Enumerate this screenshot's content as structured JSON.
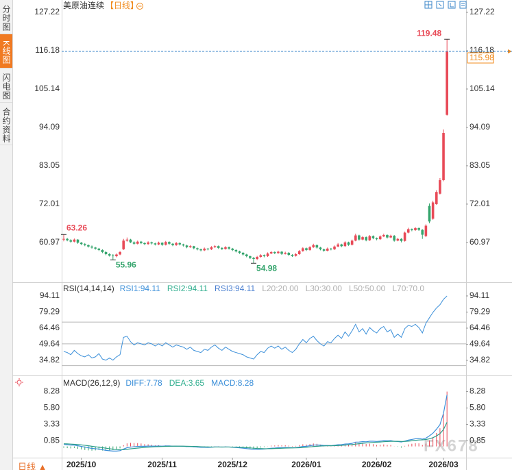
{
  "sidebar": {
    "tabs": [
      "分时图",
      "K线图",
      "闪电图",
      "合约资料"
    ],
    "active": 1
  },
  "period_button": "日线 ▲",
  "watermark": "FX678",
  "chart_data": [
    {
      "type": "candlestick",
      "title": "美原油连续",
      "subtitle": "【日线】",
      "up_color": "#e84a57",
      "down_color": "#34a46c",
      "last_color": "#f08a1c",
      "last_line_color": "#3a86c8",
      "ylim": [
        49.9,
        128.8
      ],
      "yticks": [
        127.22,
        116.18,
        105.14,
        94.09,
        83.05,
        72.01,
        60.97
      ],
      "open": [
        61.8,
        62.0,
        61.6,
        61.2,
        61.8,
        60.9,
        60.5,
        60.2,
        59.8,
        59.5,
        59.2,
        58.8,
        58.2,
        57.6,
        57.2,
        57.0,
        57.5,
        59.0,
        61.5,
        61.8,
        61.0,
        60.6,
        61.2,
        60.8,
        60.5,
        61.0,
        60.7,
        60.4,
        60.9,
        60.3,
        61.1,
        60.6,
        60.2,
        60.8,
        60.4,
        60.1,
        59.6,
        59.9,
        59.3,
        59.0,
        58.7,
        59.2,
        59.0,
        59.6,
        59.9,
        59.4,
        59.1,
        59.6,
        59.2,
        58.8,
        58.4,
        58.0,
        57.5,
        57.0,
        56.5,
        56.2,
        56.8,
        57.3,
        57.0,
        57.8,
        58.2,
        57.9,
        58.3,
        57.7,
        58.0,
        57.4,
        57.1,
        57.6,
        58.5,
        59.3,
        58.8,
        59.6,
        60.2,
        59.5,
        59.0,
        58.6,
        59.2,
        59.0,
        59.8,
        60.4,
        59.9,
        61.0,
        60.3,
        61.5,
        63.0,
        61.8,
        62.5,
        61.6,
        62.8,
        62.2,
        61.9,
        62.7,
        63.1,
        62.4,
        62.9,
        61.5,
        62.0,
        61.4,
        63.8,
        64.8,
        64.5,
        65.1,
        64.6,
        62.8,
        71.5,
        67.8,
        72.0,
        75.0,
        78.9,
        97.7
      ],
      "high": [
        63.26,
        62.3,
        61.9,
        62.1,
        61.9,
        61.1,
        60.8,
        60.4,
        60.1,
        59.7,
        59.4,
        59.0,
        58.5,
        57.9,
        57.6,
        57.8,
        58.5,
        62.0,
        62.4,
        62.0,
        61.3,
        61.5,
        61.4,
        61.0,
        61.3,
        61.2,
        60.9,
        61.2,
        61.0,
        61.4,
        61.3,
        60.8,
        61.1,
        61.0,
        60.6,
        60.3,
        60.2,
        60.0,
        59.5,
        59.2,
        59.5,
        59.4,
        59.9,
        60.2,
        60.1,
        59.6,
        59.9,
        59.8,
        59.4,
        59.0,
        58.6,
        58.2,
        57.7,
        57.2,
        56.8,
        57.1,
        57.6,
        57.5,
        58.1,
        58.5,
        58.4,
        58.6,
        58.5,
        58.3,
        58.2,
        57.6,
        57.9,
        58.8,
        59.6,
        59.5,
        59.9,
        60.6,
        60.4,
        59.7,
        59.2,
        59.5,
        59.4,
        60.1,
        60.8,
        60.6,
        61.3,
        61.2,
        61.8,
        63.5,
        63.2,
        62.8,
        62.7,
        63.1,
        63.0,
        62.4,
        63.0,
        63.5,
        63.3,
        63.2,
        63.1,
        62.3,
        62.2,
        64.1,
        65.2,
        65.0,
        65.4,
        65.3,
        64.8,
        66.2,
        72.2,
        73.0,
        76.0,
        79.5,
        93.5,
        119.48
      ],
      "low": [
        61.3,
        61.3,
        60.9,
        61.0,
        60.6,
        60.2,
        59.9,
        59.5,
        59.2,
        58.9,
        58.5,
        57.9,
        57.3,
        56.9,
        55.96,
        56.7,
        57.3,
        58.8,
        61.2,
        60.8,
        60.3,
        60.4,
        60.5,
        60.2,
        60.3,
        60.4,
        60.1,
        60.2,
        60.0,
        60.1,
        60.3,
        59.9,
        60.0,
        60.1,
        59.8,
        59.3,
        59.4,
        59.0,
        58.7,
        58.4,
        58.5,
        58.7,
        58.8,
        59.4,
        59.1,
        58.8,
        58.9,
        58.9,
        58.5,
        58.1,
        57.7,
        57.2,
        56.7,
        56.2,
        54.98,
        55.9,
        56.6,
        56.7,
        56.8,
        57.6,
        57.6,
        57.7,
        57.4,
        57.5,
        57.1,
        56.8,
        56.9,
        57.4,
        58.3,
        58.5,
        58.6,
        59.4,
        59.2,
        58.7,
        58.3,
        58.4,
        58.7,
        58.8,
        59.6,
        59.6,
        59.7,
        60.0,
        60.1,
        61.3,
        61.5,
        61.6,
        61.3,
        61.4,
        61.9,
        61.6,
        61.7,
        62.5,
        62.1,
        62.2,
        61.2,
        61.3,
        61.0,
        61.2,
        63.6,
        64.2,
        64.3,
        64.3,
        62.0,
        62.5,
        66.5,
        67.5,
        71.8,
        74.8,
        78.6,
        97.5
      ],
      "close": [
        62.0,
        61.6,
        61.2,
        61.8,
        60.9,
        60.5,
        60.2,
        59.8,
        59.5,
        59.2,
        58.8,
        58.2,
        57.6,
        57.2,
        57.0,
        57.5,
        58.2,
        61.5,
        61.8,
        61.0,
        60.6,
        61.2,
        60.8,
        60.5,
        61.0,
        60.7,
        60.4,
        60.9,
        60.3,
        61.1,
        60.6,
        60.2,
        60.8,
        60.4,
        60.1,
        59.6,
        59.9,
        59.3,
        59.0,
        58.7,
        59.2,
        59.0,
        59.6,
        59.9,
        59.4,
        59.1,
        59.6,
        59.2,
        58.8,
        58.4,
        58.0,
        57.5,
        57.0,
        56.5,
        56.2,
        56.8,
        57.3,
        57.0,
        57.8,
        58.2,
        57.9,
        58.3,
        57.7,
        58.0,
        57.4,
        57.1,
        57.6,
        58.5,
        59.3,
        58.8,
        59.6,
        60.2,
        59.5,
        59.0,
        58.6,
        59.2,
        59.0,
        59.8,
        60.4,
        59.9,
        61.0,
        60.3,
        61.5,
        63.0,
        61.8,
        62.5,
        61.6,
        62.8,
        62.2,
        61.9,
        62.7,
        63.1,
        62.4,
        62.9,
        61.5,
        62.0,
        61.4,
        63.8,
        64.8,
        64.5,
        65.1,
        64.6,
        63.2,
        65.8,
        67.0,
        72.5,
        75.5,
        78.9,
        92.5,
        115.98
      ]
    },
    {
      "type": "line",
      "title": "RSI(14,14,14)",
      "legend": [
        {
          "text": "RSI1:94.11",
          "color": "#3b8fd9"
        },
        {
          "text": "RSI2:94.11",
          "color": "#2fae8e"
        },
        {
          "text": "RSI3:94.11",
          "color": "#4a7fd0"
        },
        {
          "text": "L20:20.00",
          "color": "#b0b0b0"
        },
        {
          "text": "L30:30.00",
          "color": "#b0b0b0"
        },
        {
          "text": "L50:50.00",
          "color": "#b0b0b0"
        },
        {
          "text": "L70:70.0",
          "color": "#b0b0b0"
        }
      ],
      "levels": [
        20,
        30,
        50,
        70
      ],
      "level_color": "#b8b8b8",
      "ylim": [
        22.8,
        104.8
      ],
      "yticks": [
        94.11,
        79.29,
        64.46,
        49.64,
        34.82
      ],
      "series": [
        {
          "color": "#3b8fd9",
          "values": [
            43,
            42,
            40,
            44,
            41,
            39,
            38,
            40,
            37,
            38,
            41,
            36,
            35,
            37,
            35,
            38,
            40,
            56,
            57,
            52,
            49,
            51,
            50,
            49,
            51,
            50,
            48,
            50,
            48,
            51,
            49,
            47,
            49,
            48,
            47,
            45,
            47,
            44,
            43,
            42,
            45,
            44,
            47,
            49,
            46,
            44,
            47,
            45,
            43,
            42,
            41,
            40,
            38,
            37,
            36,
            40,
            43,
            42,
            46,
            48,
            46,
            48,
            45,
            47,
            44,
            42,
            45,
            50,
            54,
            51,
            55,
            57,
            53,
            50,
            48,
            52,
            51,
            55,
            58,
            55,
            61,
            57,
            62,
            68,
            61,
            64,
            59,
            65,
            62,
            60,
            64,
            66,
            61,
            63,
            56,
            59,
            56,
            64,
            67,
            66,
            68,
            65,
            60,
            69,
            74,
            79,
            83,
            86,
            91,
            94.11
          ]
        }
      ]
    },
    {
      "type": "combo",
      "title": "MACD(26,12,9)",
      "legend": [
        {
          "text": "DIFF:7.78",
          "color": "#3b8fd9"
        },
        {
          "text": "DEA:3.65",
          "color": "#2fae8e"
        },
        {
          "text": "MACD:8.28",
          "color": "#3b8fd9"
        }
      ],
      "ylim": [
        -1.7,
        10.2
      ],
      "yticks": [
        8.28,
        {
          "value": 5.8,
          "label": "5.80"
        },
        3.33,
        0.85
      ],
      "xticks": [
        {
          "value": 5,
          "label": "2025/10"
        },
        {
          "value": 28,
          "label": "2025/11"
        },
        {
          "value": 48,
          "label": "2025/12"
        },
        {
          "value": 69,
          "label": "2026/01"
        },
        {
          "value": 89,
          "label": "2026/02"
        },
        {
          "value": 108,
          "label": "2026/03"
        }
      ],
      "series": [
        {
          "color": "#3b8fd9",
          "values": [
            0.3,
            0.25,
            0.2,
            0.2,
            0.1,
            0.0,
            -0.1,
            -0.2,
            -0.3,
            -0.35,
            -0.4,
            -0.5,
            -0.6,
            -0.65,
            -0.7,
            -0.7,
            -0.65,
            -0.4,
            -0.2,
            -0.1,
            -0.05,
            0.0,
            0.02,
            0.02,
            0.05,
            0.05,
            0.04,
            0.06,
            0.04,
            0.08,
            0.07,
            0.04,
            0.05,
            0.04,
            0.02,
            -0.02,
            -0.02,
            -0.06,
            -0.1,
            -0.14,
            -0.14,
            -0.15,
            -0.12,
            -0.08,
            -0.08,
            -0.1,
            -0.08,
            -0.09,
            -0.12,
            -0.16,
            -0.21,
            -0.27,
            -0.33,
            -0.4,
            -0.45,
            -0.45,
            -0.42,
            -0.4,
            -0.34,
            -0.28,
            -0.25,
            -0.2,
            -0.2,
            -0.17,
            -0.18,
            -0.2,
            -0.18,
            -0.1,
            0.0,
            0.02,
            0.1,
            0.2,
            0.22,
            0.2,
            0.14,
            0.14,
            0.12,
            0.18,
            0.25,
            0.27,
            0.36,
            0.38,
            0.46,
            0.65,
            0.66,
            0.72,
            0.7,
            0.78,
            0.78,
            0.75,
            0.8,
            0.86,
            0.85,
            0.88,
            0.78,
            0.74,
            0.66,
            0.8,
            0.95,
            1.05,
            1.15,
            1.2,
            1.1,
            1.25,
            1.6,
            2.0,
            2.6,
            3.3,
            5.0,
            7.78
          ]
        },
        {
          "color": "#2a9d8a",
          "values": [
            0.4,
            0.38,
            0.35,
            0.32,
            0.28,
            0.23,
            0.17,
            0.1,
            0.02,
            -0.05,
            -0.12,
            -0.19,
            -0.27,
            -0.35,
            -0.42,
            -0.48,
            -0.51,
            -0.49,
            -0.43,
            -0.37,
            -0.31,
            -0.25,
            -0.2,
            -0.15,
            -0.11,
            -0.08,
            -0.05,
            -0.03,
            -0.01,
            0.01,
            0.02,
            0.03,
            0.03,
            0.03,
            0.03,
            0.02,
            0.01,
            0,
            -0.02,
            -0.05,
            -0.07,
            -0.08,
            -0.09,
            -0.09,
            -0.09,
            -0.09,
            -0.09,
            -0.09,
            -0.1,
            -0.11,
            -0.13,
            -0.16,
            -0.19,
            -0.23,
            -0.27,
            -0.31,
            -0.33,
            -0.35,
            -0.35,
            -0.34,
            -0.32,
            -0.3,
            -0.28,
            -0.26,
            -0.24,
            -0.23,
            -0.22,
            -0.2,
            -0.16,
            -0.12,
            -0.08,
            -0.02,
            0.02,
            0.06,
            0.08,
            0.09,
            0.1,
            0.11,
            0.14,
            0.16,
            0.2,
            0.24,
            0.28,
            0.35,
            0.41,
            0.47,
            0.52,
            0.57,
            0.61,
            0.64,
            0.67,
            0.71,
            0.74,
            0.77,
            0.77,
            0.77,
            0.75,
            0.76,
            0.8,
            0.85,
            0.91,
            0.97,
            0.99,
            1.04,
            1.15,
            1.32,
            1.58,
            1.93,
            2.55,
            3.65
          ]
        }
      ],
      "bars": {
        "up_color": "#e84a57",
        "down_color": "#34a46c",
        "values": [
          -0.2,
          -0.26,
          -0.3,
          -0.24,
          -0.36,
          -0.46,
          -0.54,
          -0.6,
          -0.64,
          -0.6,
          -0.56,
          -0.62,
          -0.66,
          -0.6,
          -0.56,
          -0.44,
          -0.28,
          0.18,
          0.46,
          0.54,
          0.52,
          0.5,
          0.44,
          0.34,
          0.32,
          0.26,
          0.18,
          0.18,
          0.1,
          0.14,
          0.1,
          0.02,
          0.04,
          0.02,
          -0.02,
          -0.08,
          -0.06,
          -0.12,
          -0.16,
          -0.18,
          -0.14,
          -0.14,
          -0.06,
          0.02,
          0.02,
          -0.02,
          0.02,
          0,
          -0.04,
          -0.1,
          -0.16,
          -0.22,
          -0.28,
          -0.34,
          -0.36,
          -0.28,
          -0.18,
          -0.1,
          0.02,
          0.12,
          0.14,
          0.2,
          0.16,
          0.18,
          0.12,
          0.06,
          0.08,
          0.2,
          0.32,
          0.28,
          0.36,
          0.44,
          0.4,
          0.28,
          0.12,
          0.1,
          0.04,
          0.14,
          0.22,
          0.22,
          0.32,
          0.28,
          0.36,
          0.6,
          0.5,
          0.5,
          0.36,
          0.42,
          0.34,
          0.22,
          0.26,
          0.3,
          0.22,
          0.22,
          0.02,
          -0.06,
          -0.18,
          0.08,
          0.3,
          0.4,
          0.48,
          0.46,
          0.22,
          0.42,
          0.9,
          1.36,
          2.04,
          2.74,
          4.9,
          8.28
        ]
      }
    }
  ]
}
